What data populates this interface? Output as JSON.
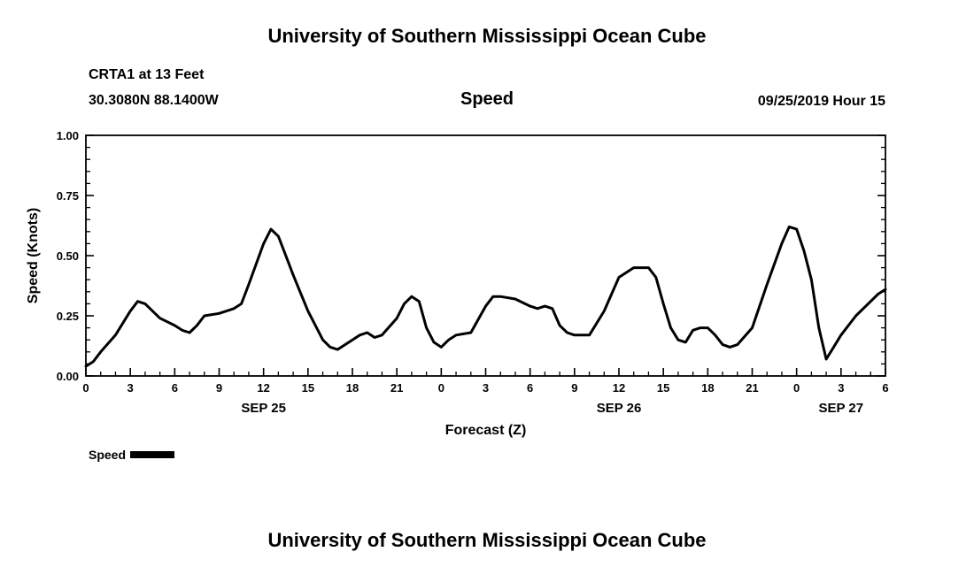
{
  "page": {
    "top_title": "University of Southern Mississippi Ocean Cube",
    "bottom_title": "University of Southern Mississippi Ocean Cube"
  },
  "header": {
    "station": "CRTA1 at 13 Feet",
    "coords": "30.3080N 88.1400W",
    "chart_title": "Speed",
    "datetime": "09/25/2019 Hour 15"
  },
  "legend": {
    "label": "Speed",
    "color": "#000000"
  },
  "chart_data": {
    "type": "line",
    "title": "Speed",
    "xlabel": "Forecast (Z)",
    "ylabel": "Speed (Knots)",
    "xlim": [
      0,
      54
    ],
    "ylim": [
      0,
      1
    ],
    "grid": false,
    "legend_position": "bottom-left",
    "line_color": "#000000",
    "yticks": {
      "values": [
        0,
        0.25,
        0.5,
        0.75,
        1.0
      ],
      "labels": [
        "0.00",
        "0.25",
        "0.50",
        "0.75",
        "1.00"
      ],
      "minor_step": 0.05
    },
    "xticks": {
      "hours": [
        0,
        3,
        6,
        9,
        12,
        15,
        18,
        21,
        24,
        27,
        30,
        33,
        36,
        39,
        42,
        45,
        48,
        51,
        54
      ],
      "labels": [
        "0",
        "3",
        "6",
        "9",
        "12",
        "15",
        "18",
        "21",
        "0",
        "3",
        "6",
        "9",
        "12",
        "15",
        "18",
        "21",
        "0",
        "3",
        "6"
      ],
      "minor_step": 1
    },
    "date_labels": [
      {
        "hour": 12,
        "label": "SEP 25"
      },
      {
        "hour": 36,
        "label": "SEP 26"
      },
      {
        "hour": 51,
        "label": "SEP 27"
      }
    ],
    "series": [
      {
        "name": "Speed",
        "color": "#000000",
        "x": [
          0,
          0.5,
          1,
          2,
          3,
          3.5,
          4,
          5,
          6,
          6.5,
          7,
          7.5,
          8,
          9,
          10,
          10.5,
          11,
          12,
          12.5,
          13,
          13.5,
          14,
          15,
          16,
          16.5,
          17,
          18,
          18.5,
          19,
          19.5,
          20,
          21,
          21.5,
          22,
          22.5,
          23,
          23.5,
          24,
          24.5,
          25,
          26,
          27,
          27.5,
          28,
          29,
          30,
          30.5,
          31,
          31.5,
          32,
          32.5,
          33,
          34,
          35,
          36,
          37,
          38,
          38.5,
          39,
          39.5,
          40,
          40.5,
          41,
          41.5,
          42,
          42.5,
          43,
          43.5,
          44,
          45,
          46,
          47,
          47.5,
          48,
          48.5,
          49,
          49.5,
          50,
          50.5,
          51,
          52,
          53,
          53.5,
          54
        ],
        "y": [
          0.04,
          0.06,
          0.1,
          0.17,
          0.27,
          0.31,
          0.3,
          0.24,
          0.21,
          0.19,
          0.18,
          0.21,
          0.25,
          0.26,
          0.28,
          0.3,
          0.38,
          0.55,
          0.61,
          0.58,
          0.5,
          0.42,
          0.27,
          0.15,
          0.12,
          0.11,
          0.15,
          0.17,
          0.18,
          0.16,
          0.17,
          0.24,
          0.3,
          0.33,
          0.31,
          0.2,
          0.14,
          0.12,
          0.15,
          0.17,
          0.18,
          0.29,
          0.33,
          0.33,
          0.32,
          0.29,
          0.28,
          0.29,
          0.28,
          0.21,
          0.18,
          0.17,
          0.17,
          0.27,
          0.41,
          0.45,
          0.45,
          0.41,
          0.3,
          0.2,
          0.15,
          0.14,
          0.19,
          0.2,
          0.2,
          0.17,
          0.13,
          0.12,
          0.13,
          0.2,
          0.38,
          0.55,
          0.62,
          0.61,
          0.52,
          0.4,
          0.2,
          0.07,
          0.12,
          0.17,
          0.25,
          0.31,
          0.34,
          0.36
        ]
      }
    ]
  }
}
